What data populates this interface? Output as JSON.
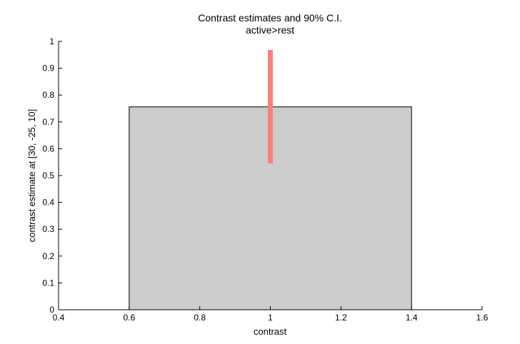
{
  "chart_data": {
    "type": "bar",
    "title": "Contrast estimates and 90% C.I.",
    "subtitle": "active>rest",
    "xlabel": "contrast",
    "ylabel": "contrast estimate at [30, -25, 10]",
    "xlim": [
      0.4,
      1.6
    ],
    "ylim": [
      0,
      1
    ],
    "xticks": [
      "0.4",
      "0.6",
      "0.8",
      "1",
      "1.2",
      "1.4",
      "1.6"
    ],
    "yticks": [
      "0",
      "0.1",
      "0.2",
      "0.3",
      "0.4",
      "0.5",
      "0.6",
      "0.7",
      "0.8",
      "0.9",
      "1"
    ],
    "bars": [
      {
        "x": 1,
        "width": 0.8,
        "value": 0.756
      }
    ],
    "error_bars": [
      {
        "x": 1,
        "low": 0.545,
        "high": 0.968
      }
    ],
    "grid": false,
    "colors": {
      "bar_fill": "#cccccc",
      "bar_stroke": "#000000",
      "error_bar": "#ff7f7f",
      "axis": "#000000"
    }
  }
}
